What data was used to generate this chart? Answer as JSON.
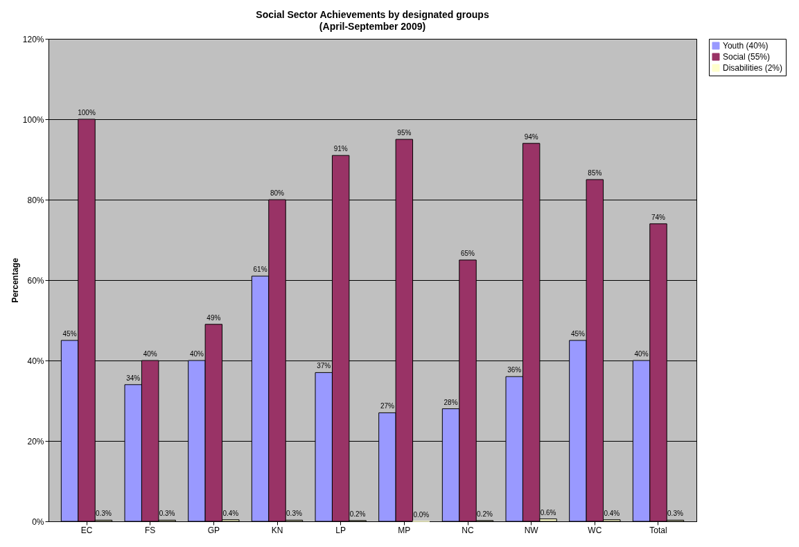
{
  "chart_data": {
    "type": "bar",
    "title": "Social Sector Achievements by designated groups",
    "subtitle": "(April-September 2009)",
    "ylabel": "Percentage",
    "categories": [
      "EC",
      "FS",
      "GP",
      "KN",
      "LP",
      "MP",
      "NC",
      "NW",
      "WC",
      "Total"
    ],
    "series": [
      {
        "name": "Youth (40%)",
        "color": "#9999ff",
        "values": [
          45,
          34,
          40,
          61,
          37,
          27,
          28,
          36,
          45,
          40
        ],
        "value_labels": [
          "45%",
          "34%",
          "40%",
          "61%",
          "37%",
          "27%",
          "28%",
          "36%",
          "45%",
          "40%"
        ]
      },
      {
        "name": "Social (55%)",
        "color": "#993366",
        "values": [
          100,
          40,
          49,
          80,
          91,
          95,
          65,
          94,
          85,
          74
        ],
        "value_labels": [
          "100%",
          "40%",
          "49%",
          "80%",
          "91%",
          "95%",
          "65%",
          "94%",
          "85%",
          "74%"
        ]
      },
      {
        "name": "Disabilities (2%)",
        "color": "#ffffcc",
        "values": [
          0.3,
          0.3,
          0.4,
          0.3,
          0.2,
          0.0,
          0.2,
          0.6,
          0.4,
          0.3
        ],
        "value_labels": [
          "0.3%",
          "0.3%",
          "0.4%",
          "0.3%",
          "0.2%",
          "0.0%",
          "0.2%",
          "0.6%",
          "0.4%",
          "0.3%"
        ]
      }
    ],
    "ylim": [
      0,
      120
    ],
    "yticks": [
      {
        "value": 0,
        "label": "0%"
      },
      {
        "value": 20,
        "label": "20%"
      },
      {
        "value": 40,
        "label": "40%"
      },
      {
        "value": 60,
        "label": "60%"
      },
      {
        "value": 80,
        "label": "80%"
      },
      {
        "value": 100,
        "label": "100%"
      },
      {
        "value": 120,
        "label": "120%"
      }
    ],
    "grid": "y",
    "legend": "right"
  }
}
